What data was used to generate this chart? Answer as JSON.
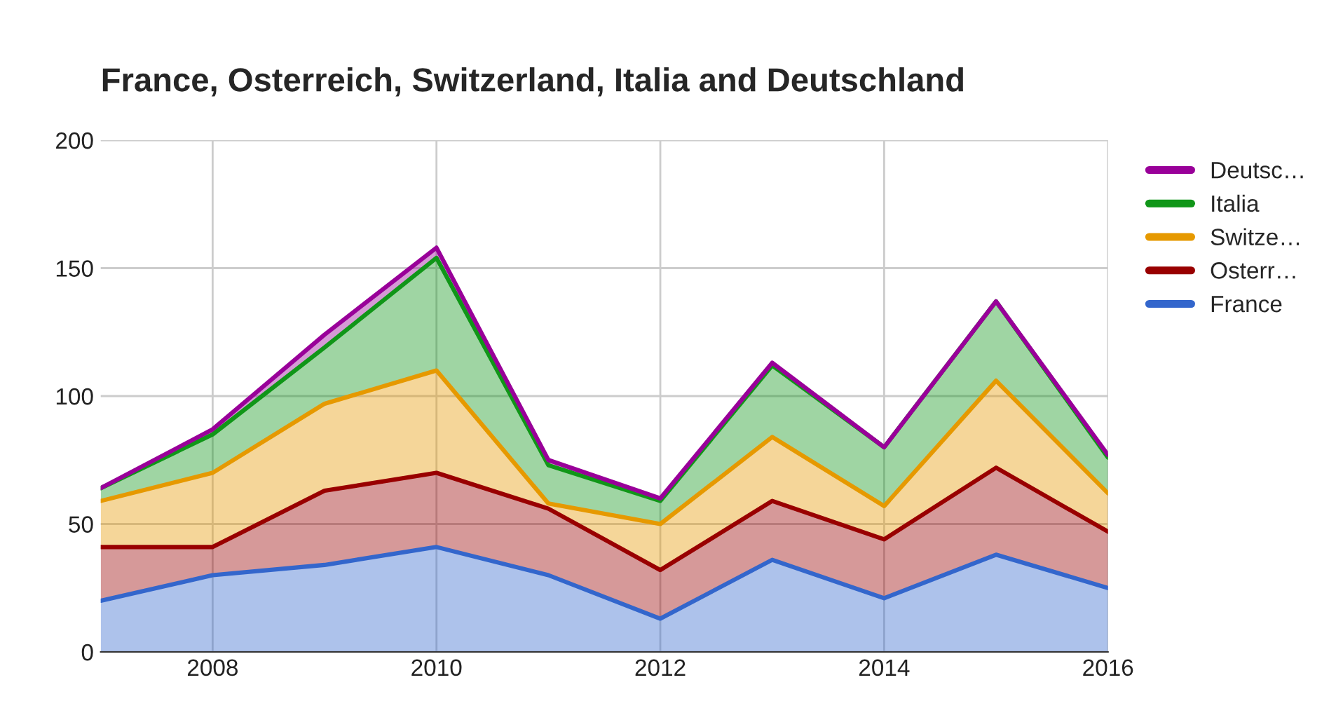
{
  "chart_data": {
    "type": "area",
    "title": "France, Osterreich, Switzerland, Italia and Deutschland",
    "stacked": true,
    "x": [
      2007,
      2008,
      2009,
      2010,
      2011,
      2012,
      2013,
      2014,
      2015,
      2016
    ],
    "series": [
      {
        "name": "France",
        "color": "#3366cc",
        "values": [
          20,
          30,
          34,
          41,
          30,
          13,
          36,
          21,
          38,
          25
        ]
      },
      {
        "name": "Osterr…",
        "color": "#990000",
        "values": [
          21,
          11,
          29,
          29,
          26,
          19,
          23,
          23,
          34,
          22
        ]
      },
      {
        "name": "Switze…",
        "color": "#e69900",
        "values": [
          18,
          29,
          34,
          40,
          2,
          18,
          25,
          13,
          34,
          15
        ]
      },
      {
        "name": "Italia",
        "color": "#109618",
        "values": [
          5,
          15,
          22,
          44,
          15,
          9,
          28,
          23,
          31,
          14
        ]
      },
      {
        "name": "Deutsc…",
        "color": "#990099",
        "values": [
          0,
          2,
          5,
          4,
          2,
          1,
          1,
          0,
          0,
          1
        ]
      }
    ],
    "xlim": [
      2007,
      2016
    ],
    "xticks": [
      2008,
      2010,
      2012,
      2014,
      2016
    ],
    "ylim": [
      0,
      200
    ],
    "yticks": [
      0,
      50,
      100,
      150,
      200
    ],
    "grid": true,
    "legend": "right"
  }
}
